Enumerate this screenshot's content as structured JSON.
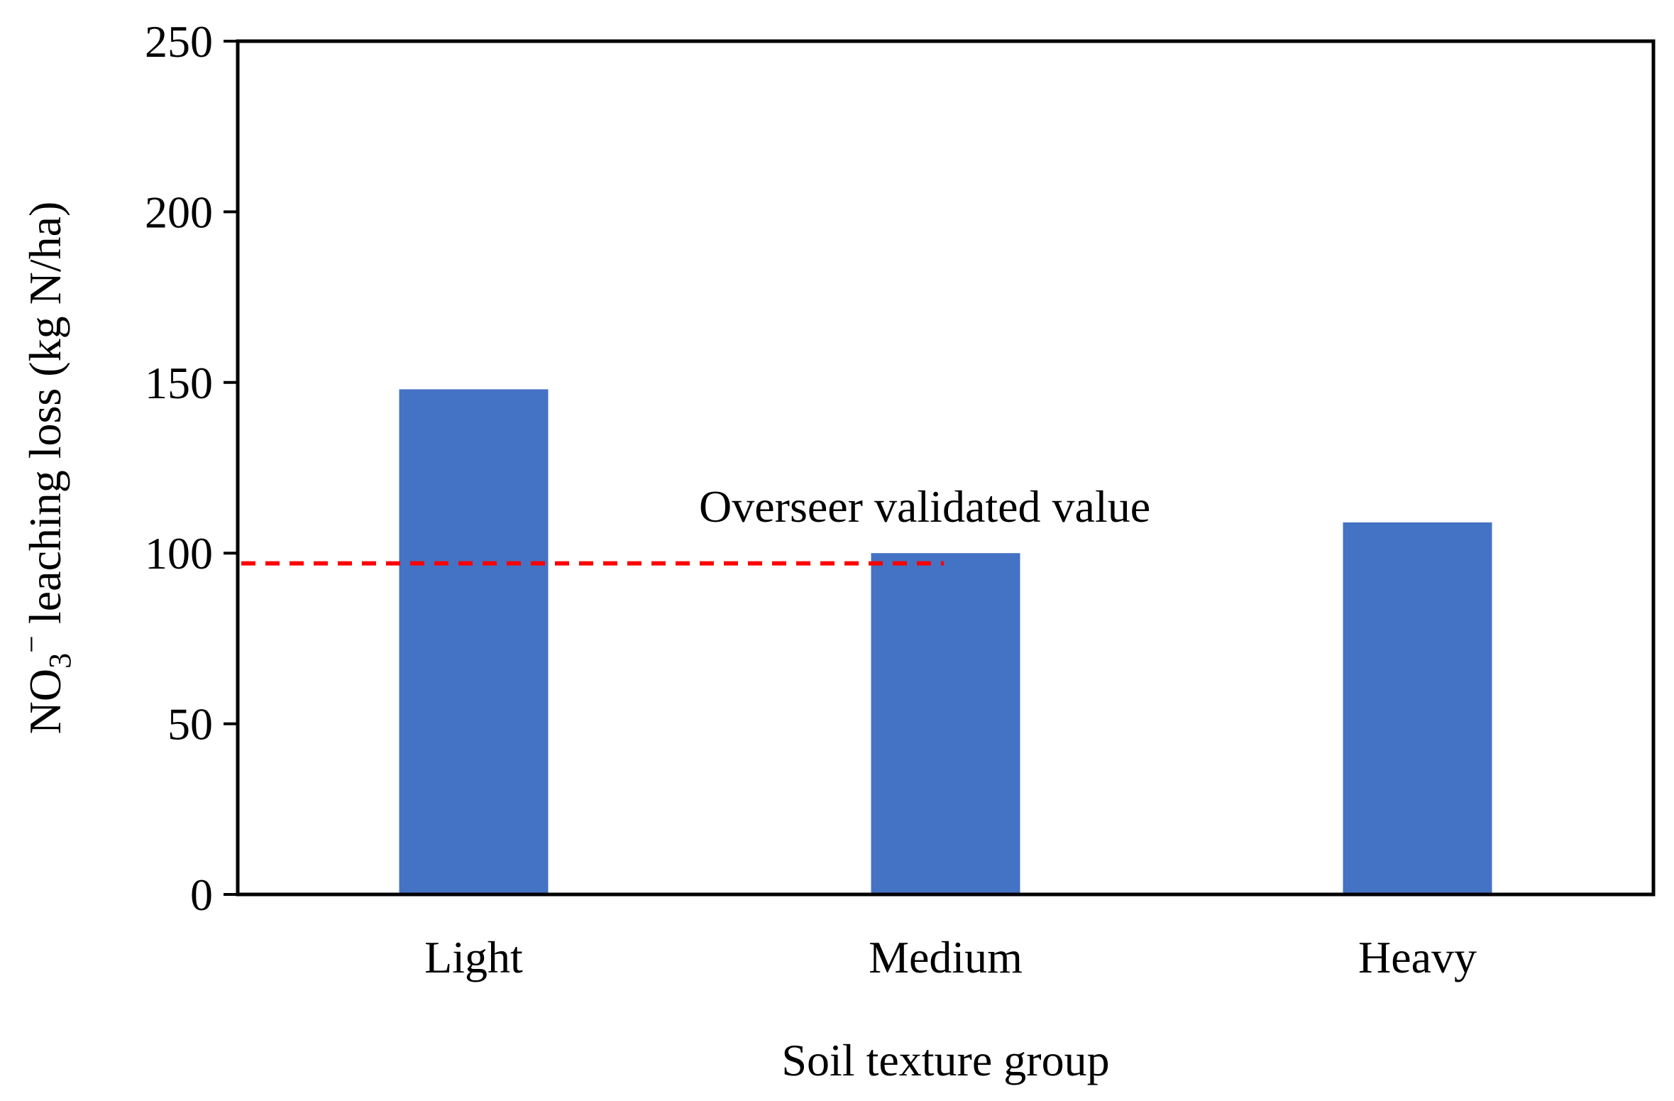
{
  "chart_data": {
    "type": "bar",
    "title": "",
    "xlabel": "Soil texture group",
    "ylabel": {
      "prefix": "NO",
      "subscript": "3",
      "superscript": "−",
      "suffix": " leaching loss (kg N/ha)"
    },
    "categories": [
      "Light",
      "Medium",
      "Heavy"
    ],
    "values": [
      148,
      100,
      109
    ],
    "ylim": [
      0,
      250
    ],
    "yticks": [
      0,
      50,
      100,
      150,
      200,
      250
    ],
    "grid": false,
    "bar_color": "#4472C4",
    "reference_line": {
      "value": 97,
      "label": "Overseer validated value",
      "color": "#FF0000",
      "style": "dashed"
    }
  }
}
